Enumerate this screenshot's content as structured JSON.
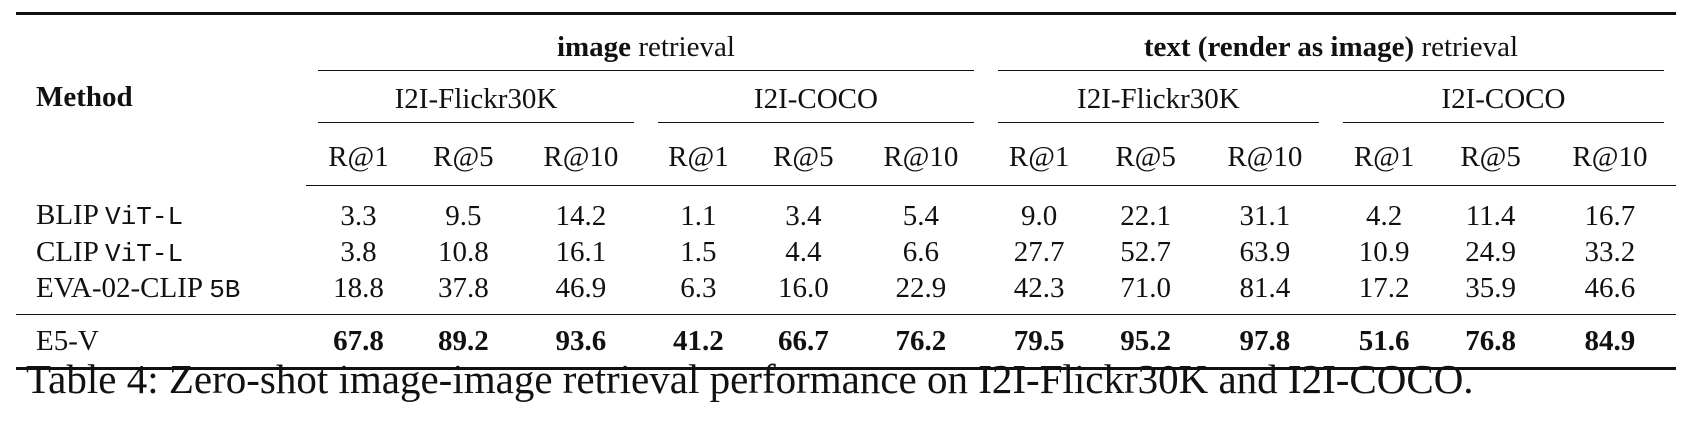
{
  "table": {
    "method_header": "Method",
    "groups": [
      {
        "bold": "image",
        "rest": "retrieval",
        "subgroups": [
          "I2I-Flickr30K",
          "I2I-COCO"
        ]
      },
      {
        "bold": "text (render as image)",
        "rest": "retrieval",
        "subgroups": [
          "I2I-Flickr30K",
          "I2I-COCO"
        ]
      }
    ],
    "metrics": [
      "R@1",
      "R@5",
      "R@10"
    ],
    "rows": [
      {
        "method": {
          "name": "BLIP",
          "variant": "ViT-L"
        },
        "values": [
          "3.3",
          "9.5",
          "14.2",
          "1.1",
          "3.4",
          "5.4",
          "9.0",
          "22.1",
          "31.1",
          "4.2",
          "11.4",
          "16.7"
        ]
      },
      {
        "method": {
          "name": "CLIP",
          "variant": "ViT-L"
        },
        "values": [
          "3.8",
          "10.8",
          "16.1",
          "1.5",
          "4.4",
          "6.6",
          "27.7",
          "52.7",
          "63.9",
          "10.9",
          "24.9",
          "33.2"
        ]
      },
      {
        "method": {
          "name": "EVA-02-CLIP",
          "variant": "5B"
        },
        "values": [
          "18.8",
          "37.8",
          "46.9",
          "6.3",
          "16.0",
          "22.9",
          "42.3",
          "71.0",
          "81.4",
          "17.2",
          "35.9",
          "46.6"
        ]
      }
    ],
    "ours": {
      "method": {
        "name": "E5-V"
      },
      "values": [
        "67.8",
        "89.2",
        "93.6",
        "41.2",
        "66.7",
        "76.2",
        "79.5",
        "95.2",
        "97.8",
        "51.6",
        "76.8",
        "84.9"
      ]
    },
    "caption": "Table 4: Zero-shot image-image retrieval performance on I2I-Flickr30K and I2I-COCO."
  }
}
